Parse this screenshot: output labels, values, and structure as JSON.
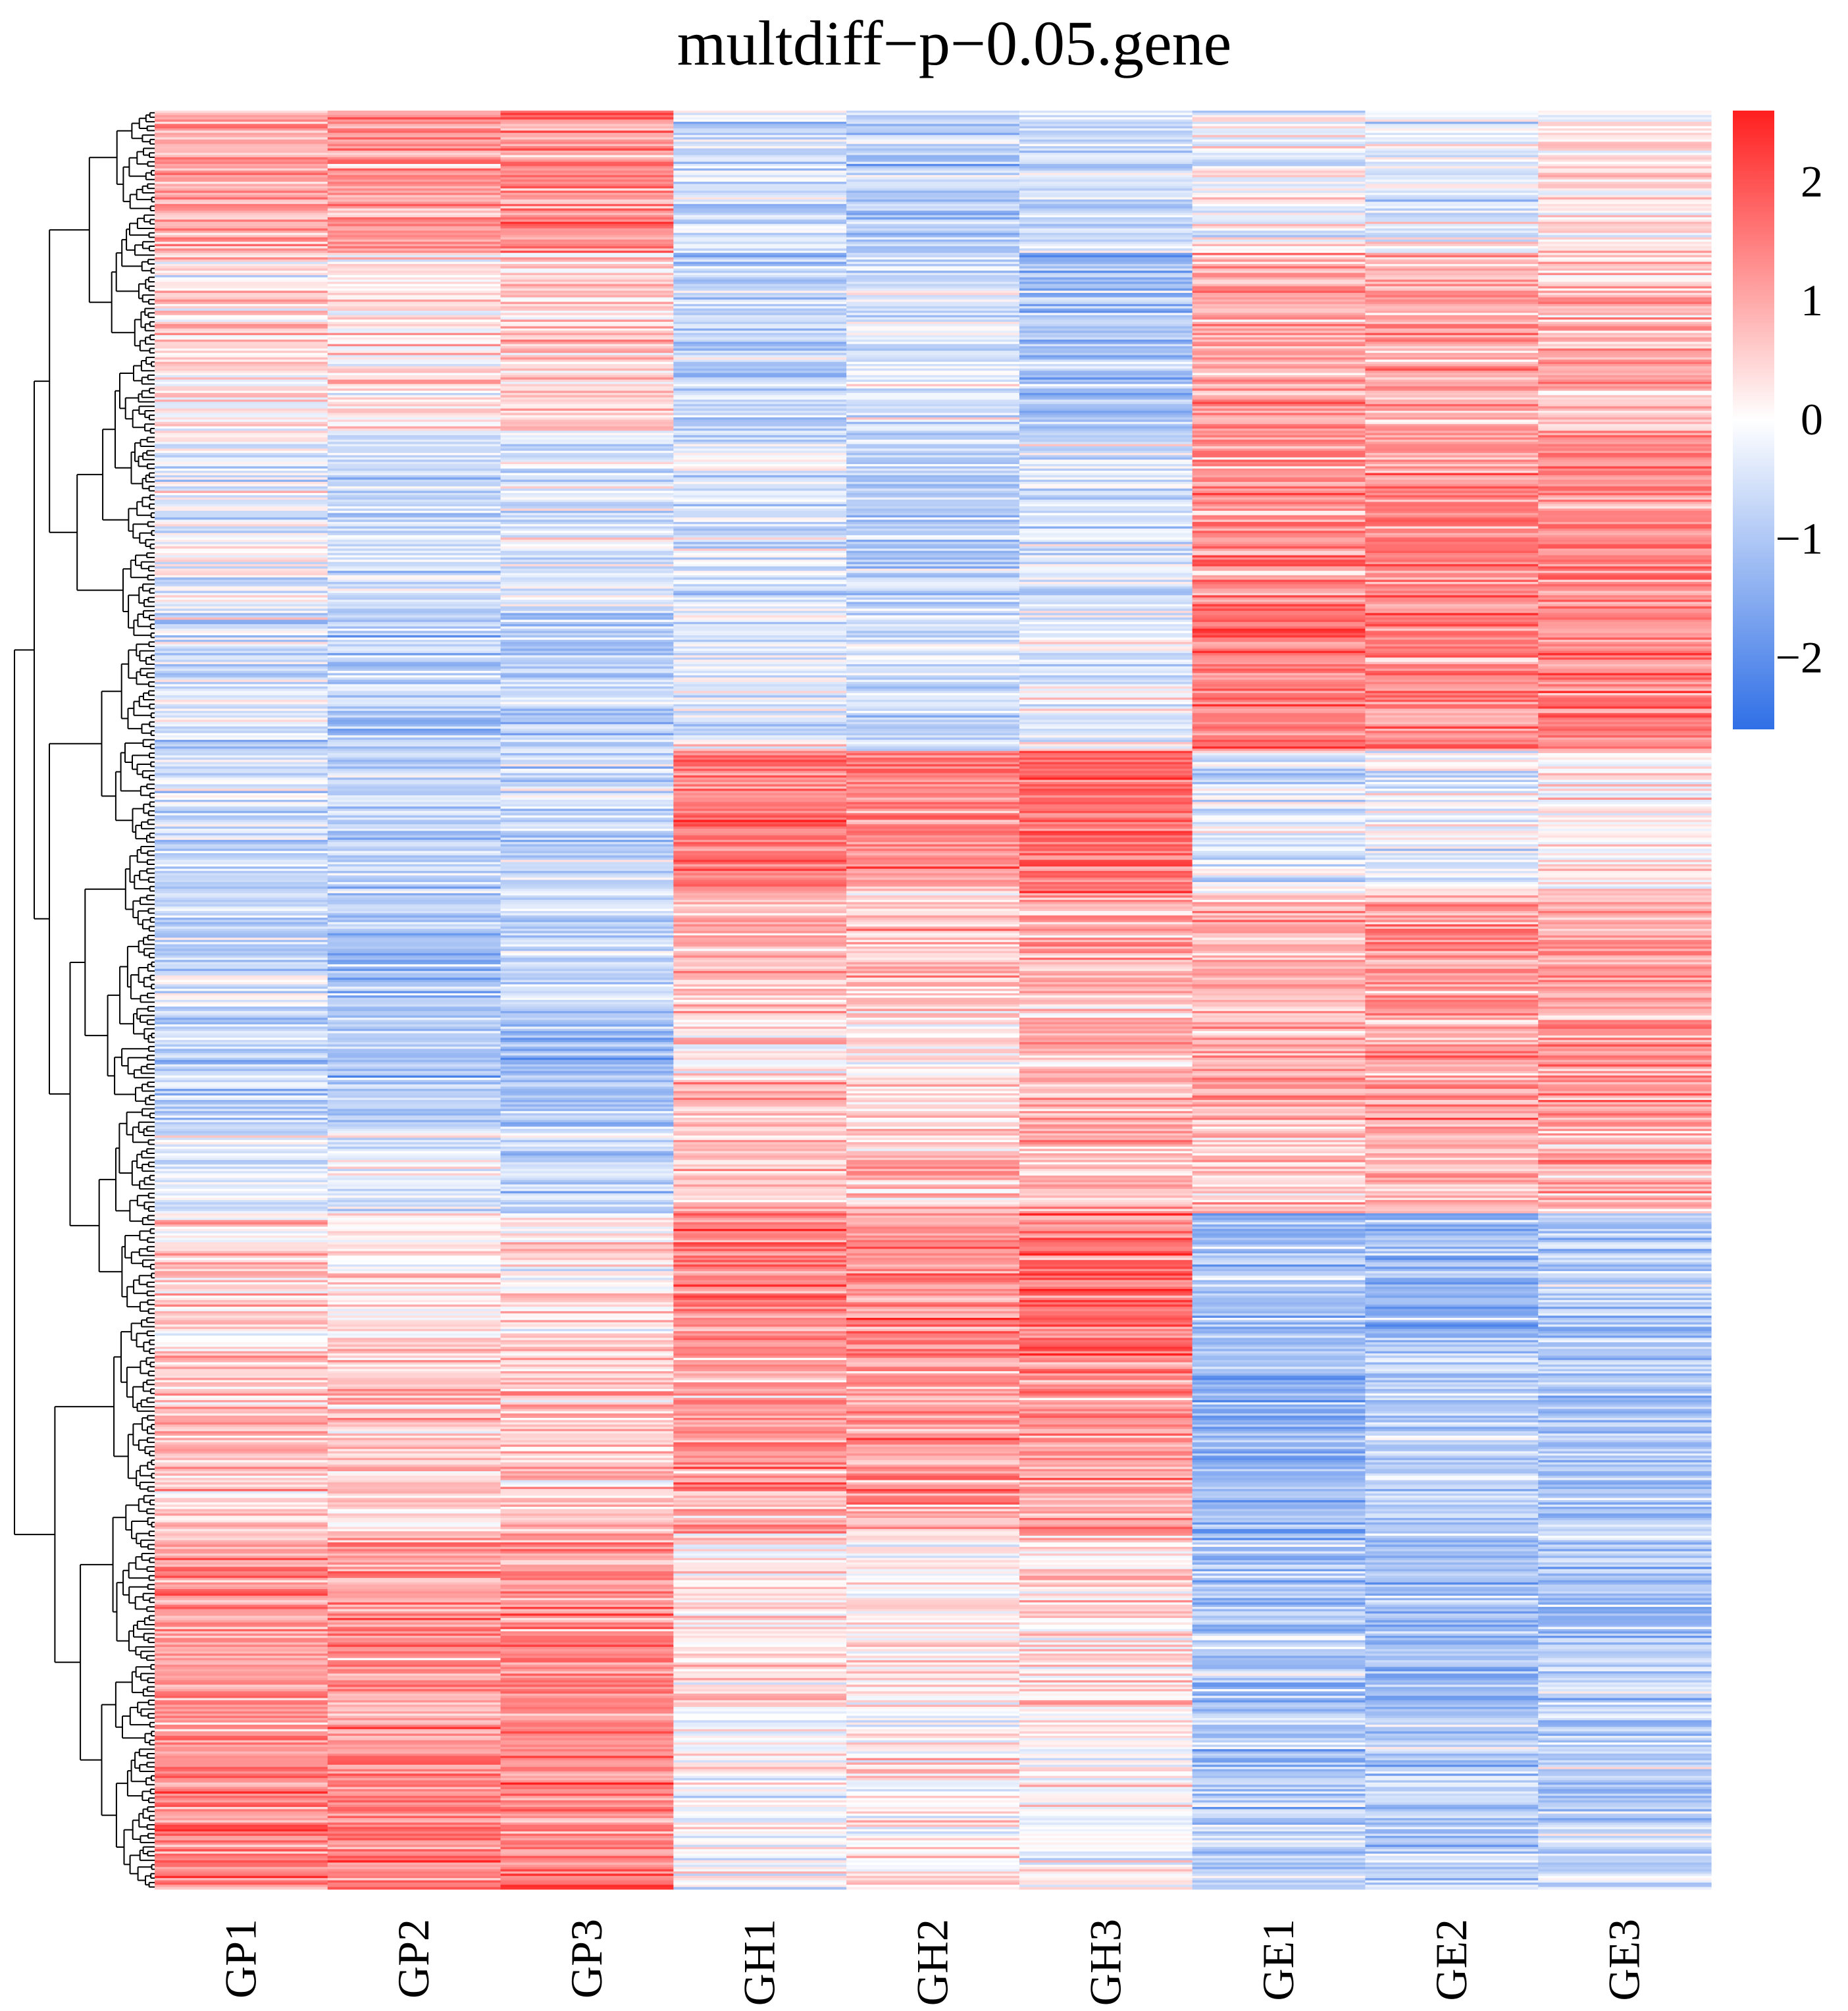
{
  "chart_data": {
    "type": "heatmap",
    "title": "multdiff−p−0.05.gene",
    "columns": [
      "GP1",
      "GP2",
      "GP3",
      "GH1",
      "GH2",
      "GH3",
      "GE1",
      "GE2",
      "GE3"
    ],
    "row_clustering": "hierarchical dendrogram on left",
    "row_count_estimate": 800,
    "color_scale": {
      "low": "#2f6fe6",
      "mid": "#ffffff",
      "high": "#ff1f1f",
      "range": [
        -2.6,
        2.6
      ],
      "ticks": [
        2,
        1,
        0,
        -1,
        -2
      ],
      "tick_labels": [
        "2",
        "1",
        "0",
        "−1",
        "−2"
      ]
    },
    "blocks": [
      {
        "row_range": [
          0.0,
          0.08
        ],
        "values": [
          1.1,
          1.2,
          1.3,
          -0.6,
          -0.9,
          -0.7,
          -0.2,
          -0.2,
          0.3
        ]
      },
      {
        "row_range": [
          0.08,
          0.18
        ],
        "values": [
          0.4,
          0.3,
          0.5,
          -0.8,
          -0.4,
          -1.1,
          1.1,
          1.0,
          0.9
        ]
      },
      {
        "row_range": [
          0.18,
          0.28
        ],
        "values": [
          -0.3,
          -0.6,
          -0.4,
          -0.5,
          -0.8,
          -0.5,
          1.2,
          1.3,
          1.3
        ]
      },
      {
        "row_range": [
          0.28,
          0.36
        ],
        "values": [
          -0.6,
          -0.8,
          -0.9,
          -0.3,
          -0.6,
          -0.3,
          1.5,
          1.4,
          1.4
        ]
      },
      {
        "row_range": [
          0.36,
          0.44
        ],
        "values": [
          -0.6,
          -0.8,
          -0.8,
          1.5,
          1.4,
          1.7,
          -0.3,
          -0.2,
          0.1
        ]
      },
      {
        "row_range": [
          0.44,
          0.51
        ],
        "values": [
          -0.5,
          -1.1,
          -0.6,
          0.8,
          0.7,
          0.8,
          0.9,
          1.1,
          0.9
        ]
      },
      {
        "row_range": [
          0.51,
          0.57
        ],
        "values": [
          -0.8,
          -0.9,
          -1.3,
          0.6,
          0.3,
          0.8,
          0.9,
          1.1,
          1.2
        ]
      },
      {
        "row_range": [
          0.57,
          0.62
        ],
        "values": [
          -0.4,
          -0.3,
          -0.7,
          0.9,
          0.7,
          0.9,
          0.7,
          0.8,
          0.9
        ]
      },
      {
        "row_range": [
          0.62,
          0.7
        ],
        "values": [
          0.4,
          0.2,
          0.3,
          1.3,
          1.3,
          1.6,
          -1.1,
          -1.2,
          -0.9
        ]
      },
      {
        "row_range": [
          0.7,
          0.8
        ],
        "values": [
          0.7,
          0.6,
          0.7,
          1.1,
          1.2,
          1.1,
          -1.4,
          -0.8,
          -0.9
        ]
      },
      {
        "row_range": [
          0.8,
          0.9
        ],
        "values": [
          1.2,
          1.2,
          1.3,
          0.3,
          0.2,
          0.4,
          -1.0,
          -1.1,
          -0.9
        ]
      },
      {
        "row_range": [
          0.9,
          1.0
        ],
        "values": [
          1.4,
          1.3,
          1.4,
          -0.1,
          0.2,
          0.1,
          -0.9,
          -0.9,
          -0.9
        ]
      }
    ],
    "xlabel": "",
    "ylabel": "",
    "legend_position": "top-right"
  }
}
